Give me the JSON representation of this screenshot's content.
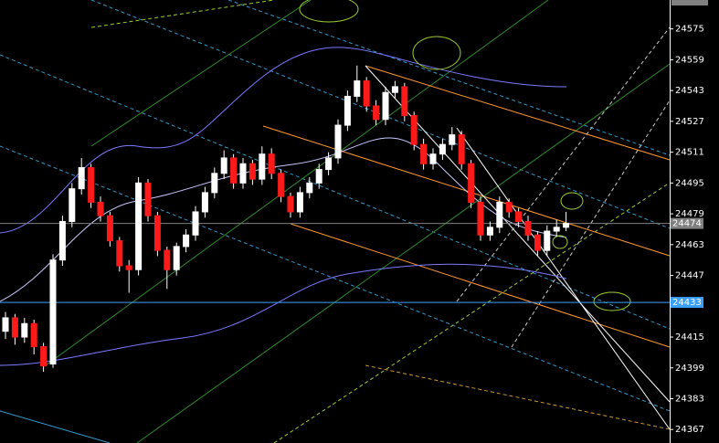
{
  "chart_data": {
    "type": "candlestick",
    "open": [
      24418,
      24425,
      24415,
      24422,
      24410,
      24401,
      24455,
      24475,
      24492,
      24503,
      24485,
      24478,
      24465,
      24452,
      24450,
      24495,
      24478,
      24460,
      24450,
      24462,
      24468,
      24480,
      24490,
      24500,
      24508,
      24495,
      24505,
      24497,
      24510,
      24500,
      24488,
      24480,
      24490,
      24495,
      24502,
      24508,
      24525,
      24540,
      24548,
      24535,
      24528,
      24542,
      24545,
      24530,
      24515,
      24505,
      24510,
      24515,
      24520,
      24505,
      24485,
      24468,
      24472,
      24485,
      24480,
      24475,
      24468,
      24460,
      24470,
      24472
    ],
    "high": [
      24428,
      24427,
      24425,
      24424,
      24412,
      24458,
      24478,
      24495,
      24508,
      24505,
      24488,
      24480,
      24467,
      24455,
      24498,
      24497,
      24480,
      24462,
      24464,
      24471,
      24483,
      24493,
      24503,
      24512,
      24510,
      24508,
      24507,
      24514,
      24513,
      24502,
      24490,
      24493,
      24498,
      24505,
      24511,
      24528,
      24543,
      24556,
      24550,
      24538,
      24545,
      24548,
      24547,
      24532,
      24518,
      24513,
      24518,
      24524,
      24522,
      24507,
      24488,
      24475,
      24488,
      24487,
      24482,
      24478,
      24470,
      24473,
      24476,
      24480
    ],
    "low": [
      24414,
      24411,
      24412,
      24406,
      24397,
      24399,
      24452,
      24472,
      24489,
      24482,
      24475,
      24462,
      24449,
      24438,
      24447,
      24475,
      24457,
      24440,
      24447,
      24459,
      24465,
      24477,
      24487,
      24497,
      24492,
      24492,
      24494,
      24494,
      24497,
      24485,
      24477,
      24477,
      24487,
      24492,
      24499,
      24505,
      24522,
      24537,
      24532,
      24525,
      24525,
      24539,
      24527,
      24512,
      24502,
      24502,
      24507,
      24512,
      24502,
      24482,
      24465,
      24465,
      24469,
      24477,
      24472,
      24465,
      24457,
      24457,
      24467,
      24470
    ],
    "close": [
      24425,
      24415,
      24422,
      24410,
      24400,
      24455,
      24475,
      24492,
      24503,
      24485,
      24478,
      24465,
      24452,
      24450,
      24495,
      24478,
      24460,
      24450,
      24462,
      24468,
      24480,
      24490,
      24500,
      24508,
      24495,
      24505,
      24497,
      24510,
      24500,
      24488,
      24480,
      24490,
      24495,
      24502,
      24508,
      24525,
      24540,
      24548,
      24535,
      24528,
      24542,
      24545,
      24530,
      24515,
      24505,
      24510,
      24515,
      24520,
      24505,
      24485,
      24468,
      24472,
      24485,
      24480,
      24475,
      24468,
      24460,
      24470,
      24472,
      24474
    ],
    "up_color": "#ffffff",
    "down_color": "#ff1a1a",
    "ylim": [
      24360,
      24590
    ],
    "yticks": [
      24367,
      24383,
      24399,
      24415,
      24447,
      24463,
      24479,
      24495,
      24511,
      24527,
      24543,
      24559,
      24575
    ],
    "levels": [
      {
        "value": 24474,
        "color": "#808080"
      },
      {
        "value": 24433,
        "color": "#3aa0ff"
      }
    ]
  }
}
